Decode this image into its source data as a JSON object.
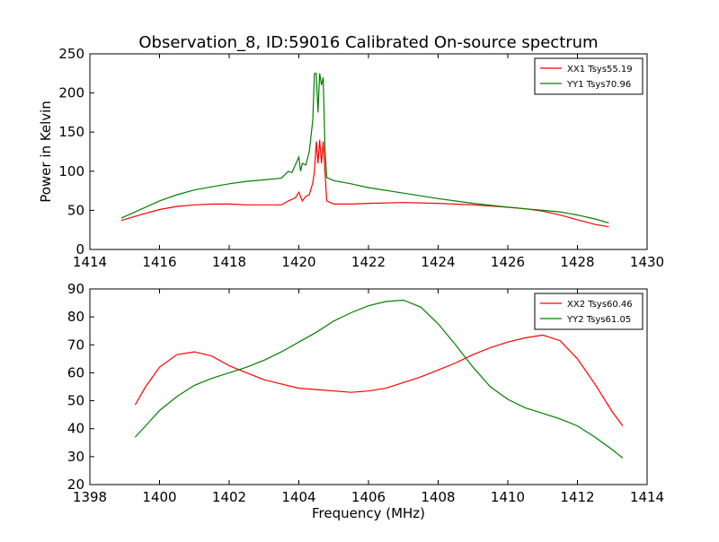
{
  "figure": {
    "title": "Observation_8, ID:59016 Calibrated On-source spectrum"
  },
  "chart_data": [
    {
      "type": "line",
      "ylabel": "Power in Kelvin",
      "xlabel": "",
      "xlim": [
        1414,
        1430
      ],
      "ylim": [
        0,
        250
      ],
      "xticks": [
        "1414",
        "1416",
        "1418",
        "1420",
        "1422",
        "1424",
        "1426",
        "1428",
        "1430"
      ],
      "yticks": [
        "0",
        "50",
        "100",
        "150",
        "200",
        "250"
      ],
      "legend_position": "top-right",
      "series": [
        {
          "name": "XX1 Tsys55.19",
          "color": "#ff0000",
          "x": [
            1414.9,
            1415.5,
            1416.0,
            1416.5,
            1417.0,
            1417.5,
            1418.0,
            1418.5,
            1419.0,
            1419.5,
            1419.7,
            1419.9,
            1420.0,
            1420.1,
            1420.2,
            1420.3,
            1420.4,
            1420.45,
            1420.5,
            1420.55,
            1420.6,
            1420.65,
            1420.7,
            1420.8,
            1421.0,
            1421.5,
            1422.0,
            1423.0,
            1424.0,
            1425.0,
            1426.0,
            1426.5,
            1427.0,
            1427.5,
            1428.0,
            1428.5,
            1428.9
          ],
          "y": [
            37,
            45,
            51,
            55,
            57,
            58,
            58,
            57,
            57,
            57,
            62,
            66,
            73,
            62,
            68,
            70,
            85,
            100,
            138,
            110,
            140,
            110,
            138,
            62,
            58,
            58,
            59,
            60,
            59,
            57,
            54,
            52,
            49,
            44,
            38,
            32,
            29
          ]
        },
        {
          "name": "YY1 Tsys70.96",
          "color": "#008000",
          "x": [
            1414.9,
            1415.5,
            1416.0,
            1416.5,
            1417.0,
            1417.5,
            1418.0,
            1418.5,
            1419.0,
            1419.5,
            1419.7,
            1419.8,
            1419.9,
            1420.0,
            1420.05,
            1420.1,
            1420.2,
            1420.3,
            1420.4,
            1420.45,
            1420.5,
            1420.55,
            1420.6,
            1420.65,
            1420.7,
            1420.75,
            1420.8,
            1421.0,
            1421.5,
            1422.0,
            1423.0,
            1424.0,
            1425.0,
            1426.0,
            1426.5,
            1427.0,
            1427.5,
            1428.0,
            1428.5,
            1428.9
          ],
          "y": [
            40,
            52,
            62,
            70,
            76,
            80,
            84,
            87,
            89,
            91,
            100,
            98,
            108,
            118,
            100,
            110,
            108,
            125,
            165,
            225,
            225,
            175,
            225,
            210,
            220,
            130,
            92,
            88,
            84,
            79,
            72,
            65,
            59,
            54,
            52,
            50,
            48,
            44,
            39,
            34
          ]
        }
      ]
    },
    {
      "type": "line",
      "ylabel": "",
      "xlabel": "Frequency (MHz)",
      "xlim": [
        1398,
        1414
      ],
      "ylim": [
        20,
        90
      ],
      "xticks": [
        "1398",
        "1400",
        "1402",
        "1404",
        "1406",
        "1408",
        "1410",
        "1412",
        "1414"
      ],
      "yticks": [
        "20",
        "30",
        "40",
        "50",
        "60",
        "70",
        "80",
        "90"
      ],
      "legend_position": "top-right",
      "series": [
        {
          "name": "XX2 Tsys60.46",
          "color": "#ff0000",
          "x": [
            1399.3,
            1399.6,
            1400.0,
            1400.5,
            1401.0,
            1401.5,
            1402.0,
            1402.5,
            1403.0,
            1403.5,
            1404.0,
            1404.5,
            1405.0,
            1405.5,
            1406.0,
            1406.5,
            1407.0,
            1407.5,
            1408.0,
            1408.5,
            1409.0,
            1409.5,
            1410.0,
            1410.5,
            1411.0,
            1411.5,
            1412.0,
            1412.5,
            1413.0,
            1413.3
          ],
          "y": [
            48.5,
            55,
            62,
            66.5,
            67.5,
            66,
            62.5,
            60,
            57.5,
            56,
            54.5,
            54,
            53.5,
            53,
            53.5,
            54.5,
            56.5,
            58.5,
            61,
            63.5,
            66.5,
            69,
            71,
            72.5,
            73.5,
            71.5,
            65,
            56,
            46,
            41
          ]
        },
        {
          "name": "YY2 Tsys61.05",
          "color": "#008000",
          "x": [
            1399.3,
            1399.6,
            1400.0,
            1400.5,
            1401.0,
            1401.5,
            1402.0,
            1402.5,
            1403.0,
            1403.5,
            1404.0,
            1404.5,
            1405.0,
            1405.5,
            1406.0,
            1406.5,
            1407.0,
            1407.5,
            1408.0,
            1408.5,
            1409.0,
            1409.5,
            1410.0,
            1410.5,
            1411.0,
            1411.5,
            1412.0,
            1412.5,
            1413.0,
            1413.3
          ],
          "y": [
            37,
            41,
            46.5,
            51.5,
            55.5,
            58,
            60,
            62,
            64.5,
            67.5,
            71,
            74.5,
            78.5,
            81.5,
            84,
            85.5,
            86,
            83.5,
            77.5,
            70,
            62,
            55,
            50.5,
            47.5,
            45.5,
            43.5,
            41,
            37,
            32.5,
            29.5
          ]
        }
      ]
    }
  ]
}
